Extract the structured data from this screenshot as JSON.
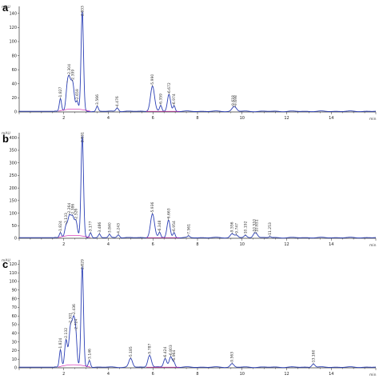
{
  "chart_data": [
    {
      "panel": "a",
      "type": "line",
      "unit": "mAU",
      "x_unit": "min",
      "xlim": [
        0,
        16
      ],
      "ylim": [
        0,
        150
      ],
      "yticks": [
        0,
        20,
        40,
        60,
        80,
        100,
        120,
        140
      ],
      "xticks": [
        2,
        4,
        6,
        8,
        10,
        12,
        14
      ],
      "peaks": [
        {
          "rt": 1.85,
          "height": 18,
          "width": 0.05,
          "label": "1.827"
        },
        {
          "rt": 2.15,
          "height": 25,
          "width": 0.06,
          "label": ""
        },
        {
          "rt": 2.25,
          "height": 38,
          "width": 0.07,
          "label": "2.304"
        },
        {
          "rt": 2.4,
          "height": 36,
          "width": 0.07,
          "label": "2.399"
        },
        {
          "rt": 2.6,
          "height": 12,
          "width": 0.05,
          "label": "2.659"
        },
        {
          "rt": 2.83,
          "height": 140,
          "width": 0.055,
          "label": "2.833"
        },
        {
          "rt": 3.5,
          "height": 7,
          "width": 0.05,
          "label": "3.566"
        },
        {
          "rt": 4.4,
          "height": 5,
          "width": 0.06,
          "label": "4.476"
        },
        {
          "rt": 5.98,
          "height": 36,
          "width": 0.09,
          "label": "5.990"
        },
        {
          "rt": 6.35,
          "height": 8,
          "width": 0.05,
          "label": "6.359"
        },
        {
          "rt": 6.72,
          "height": 24,
          "width": 0.07,
          "label": "6.672"
        },
        {
          "rt": 6.95,
          "height": 8,
          "width": 0.05,
          "label": "6.974"
        },
        {
          "rt": 9.6,
          "height": 4,
          "width": 0.08,
          "label": "9.618"
        },
        {
          "rt": 9.7,
          "height": 4,
          "width": 0.08,
          "label": "9.698"
        }
      ]
    },
    {
      "panel": "b",
      "type": "line",
      "unit": "mAU",
      "x_unit": "min",
      "xlim": [
        0,
        16
      ],
      "ylim": [
        0,
        420
      ],
      "yticks": [
        0,
        50,
        100,
        150,
        200,
        250,
        300,
        350,
        400
      ],
      "xticks": [
        2,
        4,
        6,
        8,
        10,
        12,
        14
      ],
      "peaks": [
        {
          "rt": 1.85,
          "height": 20,
          "width": 0.05,
          "label": "1.824"
        },
        {
          "rt": 2.1,
          "height": 40,
          "width": 0.06,
          "label": "2.133"
        },
        {
          "rt": 2.25,
          "height": 75,
          "width": 0.07,
          "label": "2.264"
        },
        {
          "rt": 2.4,
          "height": 70,
          "width": 0.07,
          "label": "2.386"
        },
        {
          "rt": 2.55,
          "height": 55,
          "width": 0.06,
          "label": "2.526"
        },
        {
          "rt": 2.83,
          "height": 400,
          "width": 0.055,
          "label": "2.831"
        },
        {
          "rt": 3.2,
          "height": 20,
          "width": 0.05,
          "label": "3.177"
        },
        {
          "rt": 3.6,
          "height": 14,
          "width": 0.05,
          "label": "3.486"
        },
        {
          "rt": 4.05,
          "height": 12,
          "width": 0.05,
          "label": "3.840"
        },
        {
          "rt": 4.45,
          "height": 12,
          "width": 0.06,
          "label": "4.243"
        },
        {
          "rt": 5.98,
          "height": 95,
          "width": 0.09,
          "label": "5.936"
        },
        {
          "rt": 6.3,
          "height": 20,
          "width": 0.05,
          "label": "6.348"
        },
        {
          "rt": 6.7,
          "height": 70,
          "width": 0.07,
          "label": "6.663"
        },
        {
          "rt": 6.95,
          "height": 20,
          "width": 0.05,
          "label": "6.954"
        },
        {
          "rt": 7.6,
          "height": 6,
          "width": 0.05,
          "label": "7.561"
        },
        {
          "rt": 9.55,
          "height": 15,
          "width": 0.08,
          "label": "9.556"
        },
        {
          "rt": 9.75,
          "height": 10,
          "width": 0.07,
          "label": "9.747"
        },
        {
          "rt": 10.15,
          "height": 8,
          "width": 0.06,
          "label": "10.192"
        },
        {
          "rt": 10.55,
          "height": 15,
          "width": 0.07,
          "label": "10.510"
        },
        {
          "rt": 10.65,
          "height": 12,
          "width": 0.07,
          "label": "10.651"
        },
        {
          "rt": 11.25,
          "height": 4,
          "width": 0.05,
          "label": "11.253"
        }
      ]
    },
    {
      "panel": "c",
      "type": "line",
      "unit": "mAU",
      "x_unit": "min",
      "xlim": [
        0,
        16
      ],
      "ylim": [
        0,
        125
      ],
      "yticks": [
        0,
        10,
        20,
        30,
        40,
        50,
        60,
        70,
        80,
        90,
        100,
        110,
        120
      ],
      "xticks": [
        2,
        4,
        6,
        8,
        10,
        12,
        14
      ],
      "peaks": [
        {
          "rt": 1.85,
          "height": 20,
          "width": 0.05,
          "label": "1.824"
        },
        {
          "rt": 2.1,
          "height": 30,
          "width": 0.06,
          "label": "2.132"
        },
        {
          "rt": 2.3,
          "height": 42,
          "width": 0.07,
          "label": "2.301"
        },
        {
          "rt": 2.45,
          "height": 50,
          "width": 0.07,
          "label": "2.436"
        },
        {
          "rt": 2.55,
          "height": 22,
          "width": 0.05,
          "label": "2.724"
        },
        {
          "rt": 2.83,
          "height": 115,
          "width": 0.055,
          "label": "2.829"
        },
        {
          "rt": 3.15,
          "height": 8,
          "width": 0.05,
          "label": "3.146"
        },
        {
          "rt": 5.0,
          "height": 10,
          "width": 0.08,
          "label": "5.185"
        },
        {
          "rt": 5.85,
          "height": 14,
          "width": 0.08,
          "label": "5.787"
        },
        {
          "rt": 6.55,
          "height": 10,
          "width": 0.07,
          "label": "6.424"
        },
        {
          "rt": 6.8,
          "height": 12,
          "width": 0.07,
          "label": "6.803"
        },
        {
          "rt": 6.95,
          "height": 5,
          "width": 0.05,
          "label": "6.964"
        },
        {
          "rt": 9.55,
          "height": 4,
          "width": 0.08,
          "label": "9.563"
        },
        {
          "rt": 13.2,
          "height": 4,
          "width": 0.07,
          "label": "13.160"
        }
      ]
    }
  ]
}
